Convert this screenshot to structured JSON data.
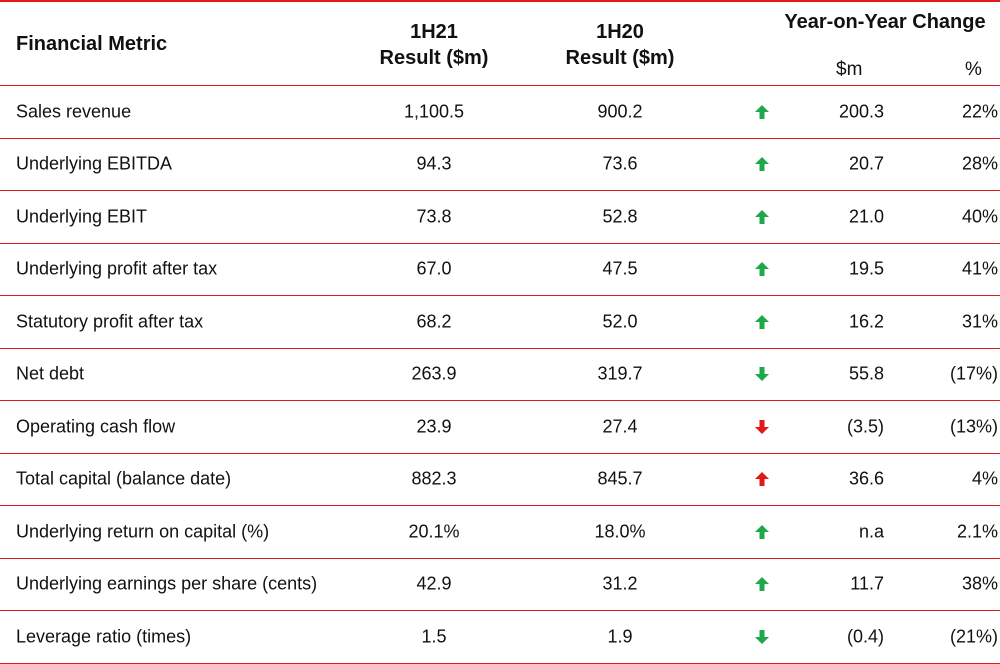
{
  "header": {
    "metric_label": "Financial Metric",
    "col1_line1": "1H21",
    "col1_line2": "Result ($m)",
    "col2_line1": "1H20",
    "col2_line2": "Result ($m)",
    "yoy_label": "Year-on-Year Change",
    "yoy_usd_label": "$m",
    "yoy_pct_label": "%"
  },
  "colors": {
    "rule": "#e01a1a",
    "up_good": "#1fa84a",
    "down_good": "#1fa84a",
    "bad": "#e01a1a"
  },
  "rows": [
    {
      "metric": "Sales revenue",
      "h21": "1,100.5",
      "h20": "900.2",
      "arrow": "up",
      "color": "#1fa84a",
      "usd": "200.3",
      "pct": "22%"
    },
    {
      "metric": "Underlying EBITDA",
      "h21": "94.3",
      "h20": "73.6",
      "arrow": "up",
      "color": "#1fa84a",
      "usd": "20.7",
      "pct": "28%"
    },
    {
      "metric": "Underlying EBIT",
      "h21": "73.8",
      "h20": "52.8",
      "arrow": "up",
      "color": "#1fa84a",
      "usd": "21.0",
      "pct": "40%"
    },
    {
      "metric": "Underlying profit after tax",
      "h21": "67.0",
      "h20": "47.5",
      "arrow": "up",
      "color": "#1fa84a",
      "usd": "19.5",
      "pct": "41%"
    },
    {
      "metric": "Statutory profit after tax",
      "h21": "68.2",
      "h20": "52.0",
      "arrow": "up",
      "color": "#1fa84a",
      "usd": "16.2",
      "pct": "31%"
    },
    {
      "metric": "Net debt",
      "h21": "263.9",
      "h20": "319.7",
      "arrow": "down",
      "color": "#1fa84a",
      "usd": "55.8",
      "pct": "(17%)"
    },
    {
      "metric": "Operating cash flow",
      "h21": "23.9",
      "h20": "27.4",
      "arrow": "down",
      "color": "#e01a1a",
      "usd": "(3.5)",
      "pct": "(13%)"
    },
    {
      "metric": "Total capital (balance date)",
      "h21": "882.3",
      "h20": "845.7",
      "arrow": "up",
      "color": "#e01a1a",
      "usd": "36.6",
      "pct": "4%"
    },
    {
      "metric": "Underlying return on capital (%)",
      "h21": "20.1%",
      "h20": "18.0%",
      "arrow": "up",
      "color": "#1fa84a",
      "usd": "n.a",
      "pct": "2.1%"
    },
    {
      "metric": "Underlying earnings per share (cents)",
      "h21": "42.9",
      "h20": "31.2",
      "arrow": "up",
      "color": "#1fa84a",
      "usd": "11.7",
      "pct": "38%"
    },
    {
      "metric": "Leverage ratio (times)",
      "h21": "1.5",
      "h20": "1.9",
      "arrow": "down",
      "color": "#1fa84a",
      "usd": "(0.4)",
      "pct": "(21%)"
    }
  ]
}
